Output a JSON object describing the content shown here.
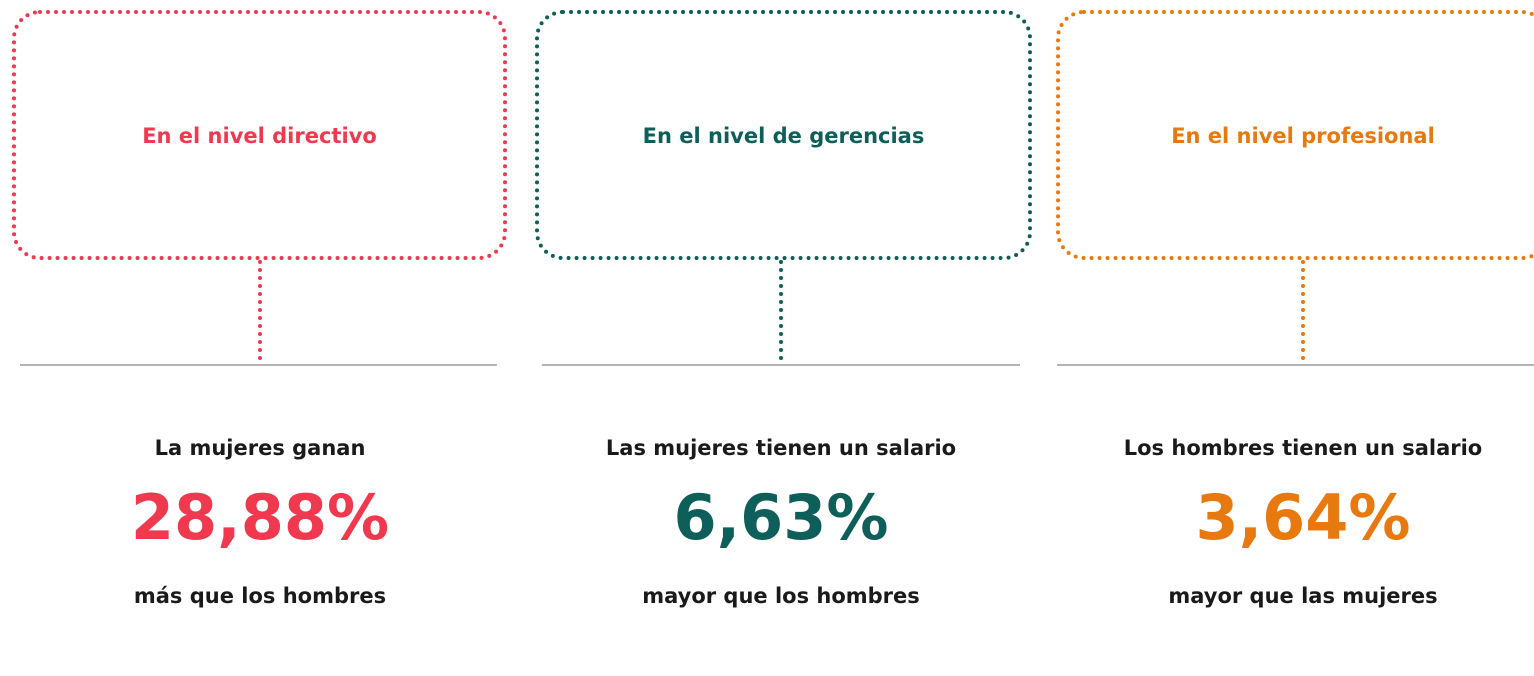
{
  "columns": [
    {
      "title": "En el nivel directivo",
      "lead": "La mujeres ganan",
      "value": "28,88%",
      "tail": "más que los hombres",
      "color": "#f0384f"
    },
    {
      "title": "En el nivel de gerencias",
      "lead": "Las mujeres tienen un salario",
      "value": "6,63%",
      "tail": "mayor que los hombres",
      "color": "#0e5e5a"
    },
    {
      "title": "En el nivel profesional",
      "lead": "Los hombres tienen un salario",
      "value": "3,64%",
      "tail": "mayor que las mujeres",
      "color": "#e8790f"
    }
  ]
}
